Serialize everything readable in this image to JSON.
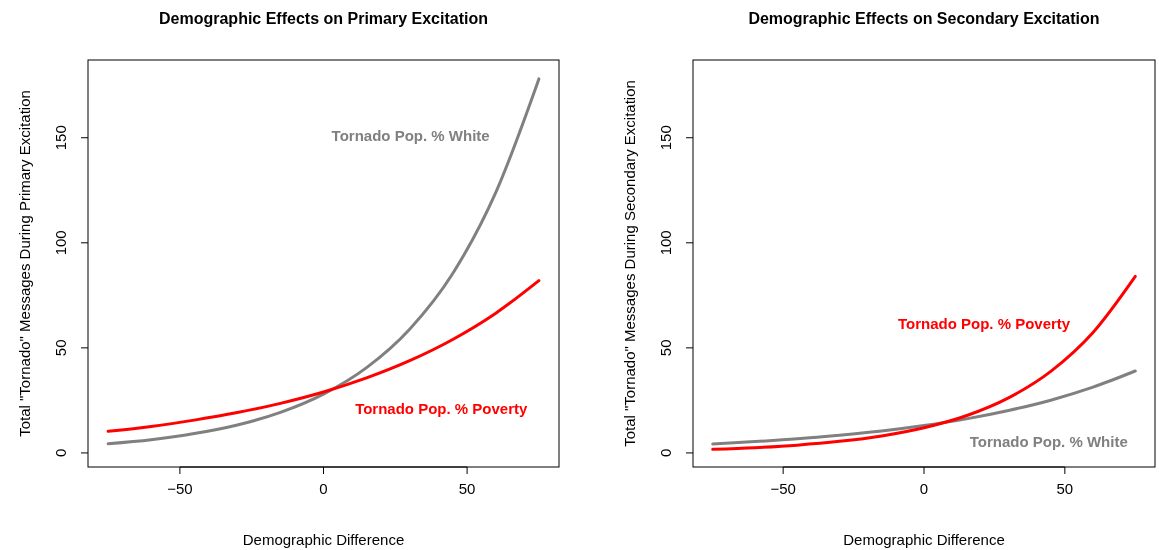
{
  "chart_data": [
    {
      "type": "line",
      "title": "Demographic Effects on Primary Excitation",
      "xlabel": "Demographic Difference",
      "ylabel": "Total \"Tornado\" Messages During Primary Excitation",
      "x": [
        -75,
        -60,
        -45,
        -30,
        -15,
        0,
        15,
        30,
        45,
        60,
        75
      ],
      "series": [
        {
          "name": "Tornado Pop. % White",
          "color": "#808080",
          "values": [
            4.4,
            6.3,
            9.2,
            13.3,
            19.3,
            28,
            40.6,
            58.9,
            85.4,
            124,
            178
          ]
        },
        {
          "name": "Tornado Pop. % Poverty",
          "color": "#ff0000",
          "values": [
            10.3,
            12.6,
            15.6,
            19.2,
            23.6,
            29,
            35.7,
            43.9,
            54,
            66.5,
            82
          ]
        }
      ],
      "xlim": [
        -82,
        82
      ],
      "ylim": [
        -6.7,
        187
      ],
      "xticks": [
        -50,
        0,
        50
      ],
      "yticks": [
        0,
        50,
        100,
        150
      ],
      "grid": false
    },
    {
      "type": "line",
      "title": "Demographic Effects on Secondary Excitation",
      "xlabel": "Demographic Difference",
      "ylabel": "Total \"Tornado\" Messages During Secondary Excitation",
      "x": [
        -75,
        -60,
        -45,
        -30,
        -15,
        0,
        15,
        30,
        45,
        60,
        75
      ],
      "series": [
        {
          "name": "Tornado Pop. % White",
          "color": "#808080",
          "values": [
            4.3,
            5.4,
            6.7,
            8.4,
            10.4,
            13,
            16.2,
            20.2,
            25.1,
            31.3,
            39
          ]
        },
        {
          "name": "Tornado Pop. % Poverty",
          "color": "#ff0000",
          "values": [
            1.7,
            2.5,
            3.7,
            5.5,
            8.1,
            12,
            17.7,
            26.2,
            38.8,
            57.3,
            84
          ]
        }
      ],
      "xlim": [
        -82,
        82
      ],
      "ylim": [
        -6.7,
        187
      ],
      "xticks": [
        -50,
        0,
        50
      ],
      "yticks": [
        0,
        50,
        100,
        150
      ],
      "grid": false
    }
  ]
}
